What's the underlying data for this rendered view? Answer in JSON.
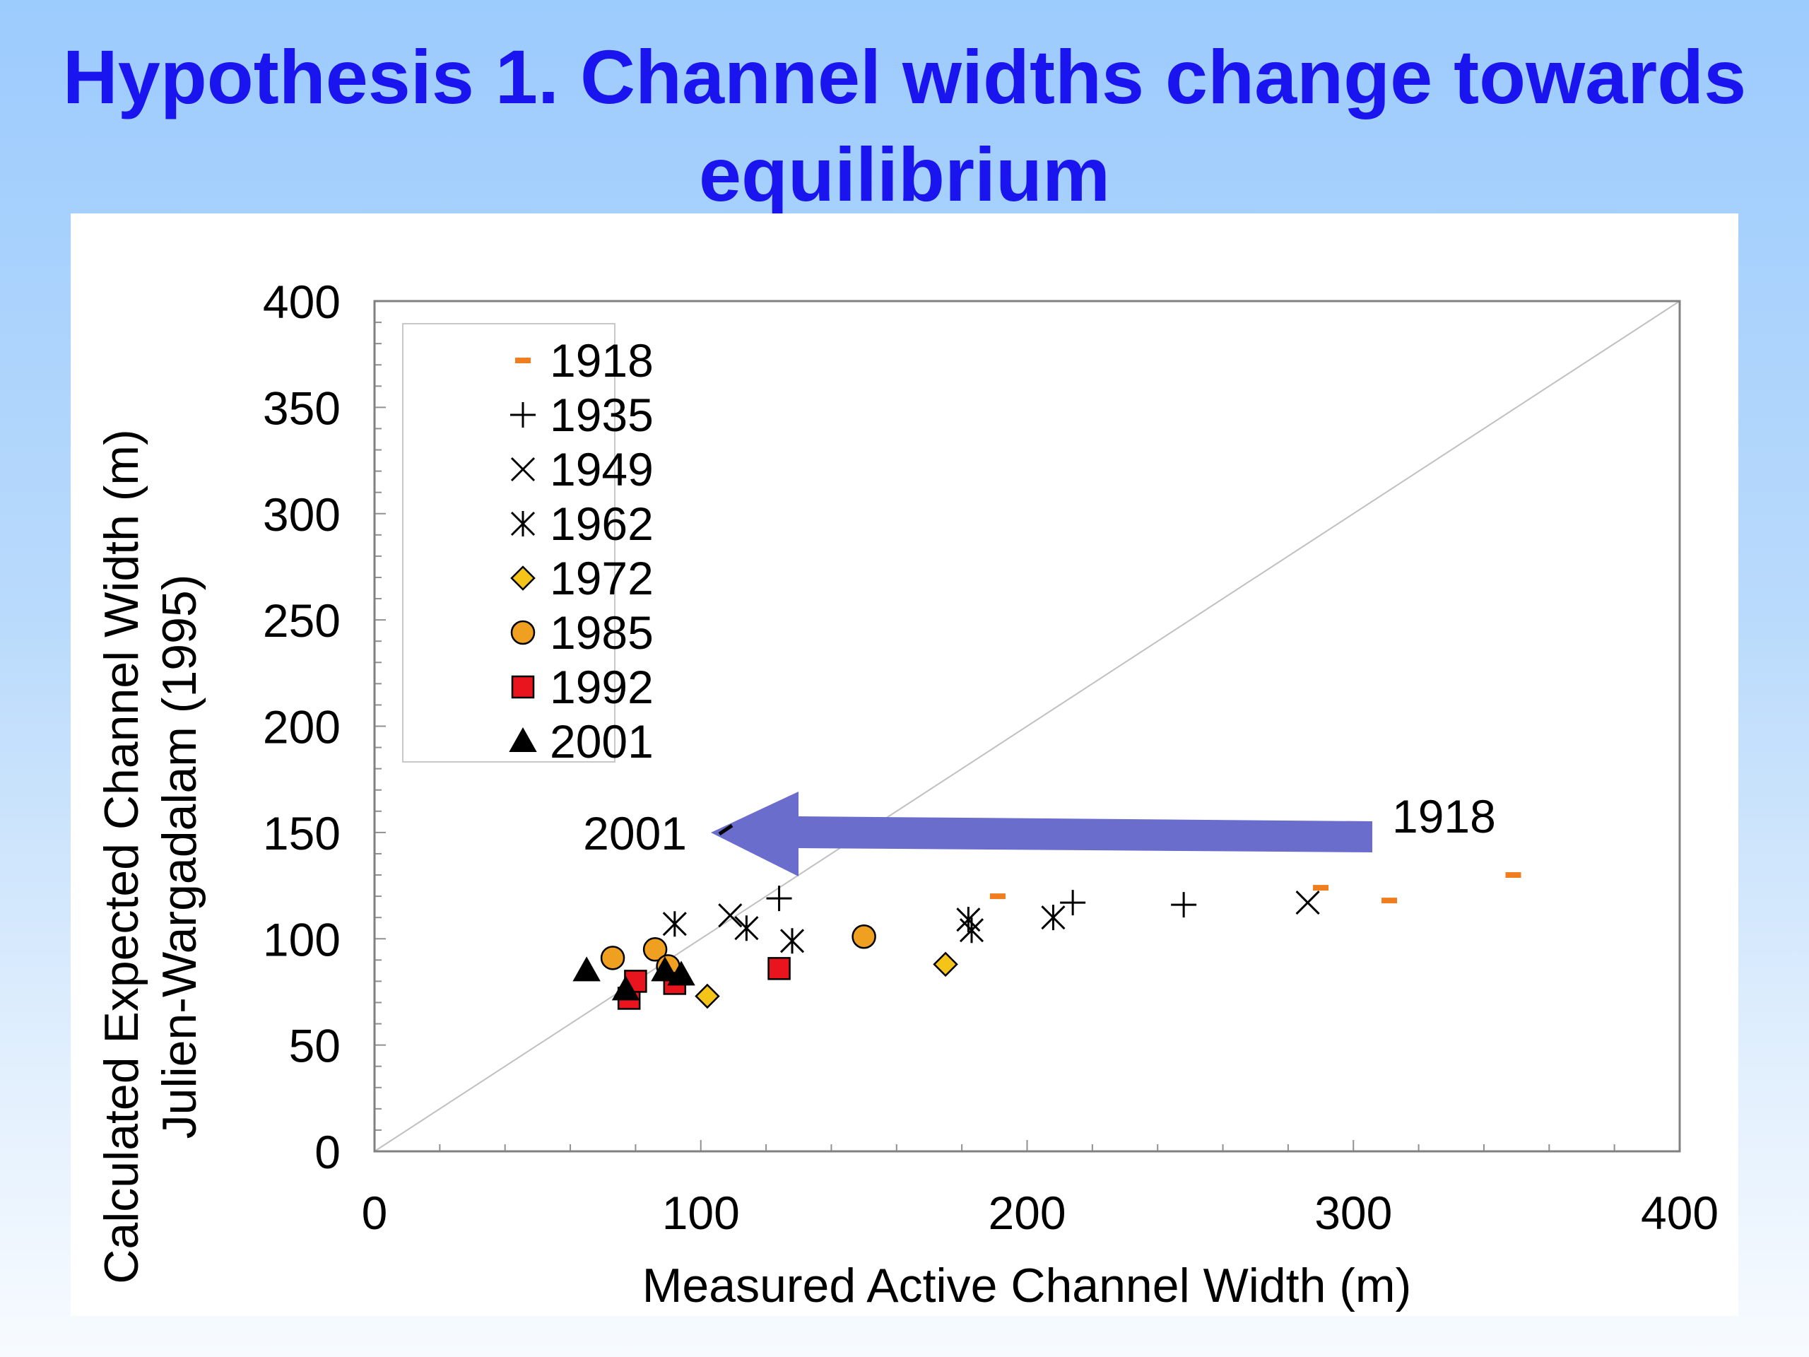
{
  "slide": {
    "title_line1": "Hypothesis 1. Channel widths change towards",
    "title_line2": "equilibrium"
  },
  "chart_data": {
    "type": "scatter",
    "xlabel": "Measured Active Channel Width (m)",
    "ylabel_line1": "Calculated Expected Channel Width (m)",
    "ylabel_line2": "Julien-Wargadalam (1995)",
    "xlim": [
      0,
      400
    ],
    "ylim": [
      0,
      400
    ],
    "x_ticks": [
      "0",
      "100",
      "200",
      "300",
      "400"
    ],
    "y_ticks": [
      "0",
      "50",
      "100",
      "150",
      "200",
      "250",
      "300",
      "350",
      "400"
    ],
    "grid": false,
    "legend_position": "top-left",
    "reference_line": "1:1",
    "series": [
      {
        "name": "1918",
        "marker": "dash",
        "color": "#f07d1e",
        "points": [
          [
            191,
            120
          ],
          [
            290,
            124
          ],
          [
            311,
            118
          ],
          [
            349,
            130
          ]
        ]
      },
      {
        "name": "1935",
        "marker": "plus",
        "color": "#000000",
        "points": [
          [
            124,
            119
          ],
          [
            214,
            117
          ],
          [
            248,
            116
          ]
        ]
      },
      {
        "name": "1949",
        "marker": "x",
        "color": "#000000",
        "points": [
          [
            109,
            111
          ],
          [
            286,
            117
          ]
        ]
      },
      {
        "name": "1962",
        "marker": "star",
        "color": "#000000",
        "points": [
          [
            92,
            107
          ],
          [
            114,
            105
          ],
          [
            128,
            99
          ],
          [
            182,
            109
          ],
          [
            183,
            104
          ],
          [
            208,
            110
          ]
        ]
      },
      {
        "name": "1972",
        "marker": "diamond",
        "color": "#f5c419",
        "points": [
          [
            102,
            73
          ],
          [
            175,
            88
          ]
        ]
      },
      {
        "name": "1985",
        "marker": "circle",
        "color": "#f0a020",
        "points": [
          [
            73,
            91
          ],
          [
            86,
            95
          ],
          [
            90,
            87
          ],
          [
            150,
            101
          ]
        ]
      },
      {
        "name": "1992",
        "marker": "square",
        "color": "#e8141e",
        "points": [
          [
            78,
            72
          ],
          [
            80,
            80
          ],
          [
            92,
            79
          ],
          [
            124,
            86
          ]
        ]
      },
      {
        "name": "2001",
        "marker": "triangle",
        "color": "#000000",
        "points": [
          [
            65,
            85
          ],
          [
            77,
            76
          ],
          [
            89,
            85
          ],
          [
            94,
            83
          ]
        ]
      }
    ],
    "annotations": {
      "arrow_start_label": "1918",
      "arrow_end_label": "2001",
      "arrow_color": "#6b6dcc"
    }
  }
}
